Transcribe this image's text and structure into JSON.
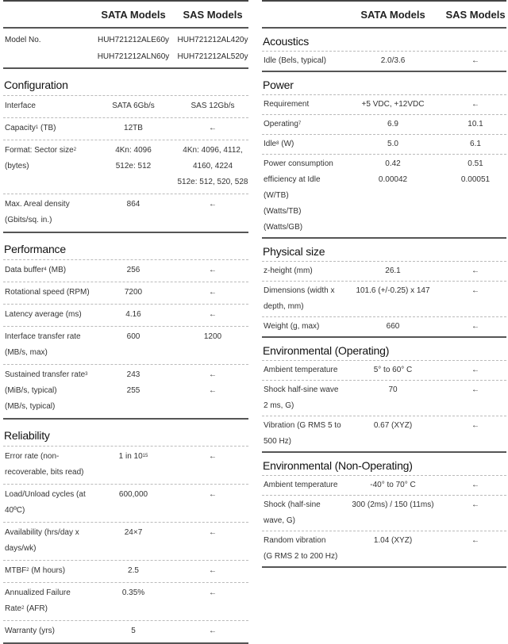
{
  "header": {
    "col_sata": "SATA Models",
    "col_sas": "SAS Models"
  },
  "left": {
    "model": {
      "label": "Model No.",
      "sata": [
        "HUH721212ALE60y",
        "HUH721212ALN60y"
      ],
      "sas": [
        "HUH721212AL420y",
        "HUH721212AL520y"
      ]
    },
    "sections": [
      {
        "title": "Configuration",
        "rows": [
          {
            "label": [
              "Interface"
            ],
            "sata": [
              "SATA 6Gb/s"
            ],
            "sas": [
              "SAS 12Gb/s"
            ]
          },
          {
            "label": [
              "Capacity"
            ],
            "sup": "1",
            "after": " (TB)",
            "sata": [
              "12TB"
            ],
            "sas": [
              "←"
            ]
          },
          {
            "label": [
              "Format: Sector size"
            ],
            "sup": "2",
            "after": " (bytes)",
            "sata": [
              "4Kn: 4096",
              "512e: 512"
            ],
            "sas": [
              "4Kn: 4096, 4112, 4160, 4224",
              "512e: 512, 520, 528"
            ]
          },
          {
            "label": [
              "Max. Areal density  (Gbits/sq. in.)"
            ],
            "sata": [
              "864"
            ],
            "sas": [
              "←"
            ]
          }
        ]
      },
      {
        "title": "Performance",
        "rows": [
          {
            "label": [
              "Data buffer"
            ],
            "sup": "4",
            "after": " (MB)",
            "sata": [
              "256"
            ],
            "sas": [
              "←"
            ]
          },
          {
            "label": [
              "Rotational speed (RPM)"
            ],
            "sata": [
              "7200"
            ],
            "sas": [
              "←"
            ]
          },
          {
            "label": [
              "Latency average (ms)"
            ],
            "sata": [
              "4.16"
            ],
            "sas": [
              "←"
            ]
          },
          {
            "label": [
              "Interface transfer rate (MB/s, max)"
            ],
            "sata": [
              "600"
            ],
            "sas": [
              "1200"
            ]
          },
          {
            "label": [
              "Sustained transfer rate",
              " (MiB/s, typical)",
              " (MB/s, typical)"
            ],
            "sup": "3",
            "supline": 0,
            "sata": [
              "",
              "243",
              "255"
            ],
            "sas": [
              "",
              "←",
              "←"
            ]
          }
        ]
      },
      {
        "title": "Reliability",
        "rows": [
          {
            "label": [
              "Error rate  (non-recoverable, bits read)"
            ],
            "sata": [
              "1 in 10"
            ],
            "valsup": "15",
            "sas": [
              "←"
            ]
          },
          {
            "label": [
              "Load/Unload cycles (at 40ºC)"
            ],
            "sata": [
              "600,000"
            ],
            "sas": [
              "←"
            ]
          },
          {
            "label": [
              "Availability (hrs/day x days/wk)"
            ],
            "sata": [
              "24×7"
            ],
            "sas": [
              "←"
            ]
          },
          {
            "label": [
              "MTBF"
            ],
            "sup": "2",
            "after": " (M hours)",
            "sata": [
              "2.5"
            ],
            "sas": [
              "←"
            ]
          },
          {
            "label": [
              "Annualized Failure Rate"
            ],
            "sup": "2",
            "after": " (AFR)",
            "sata": [
              "0.35%"
            ],
            "sas": [
              "←"
            ]
          },
          {
            "label": [
              "Warranty (yrs)"
            ],
            "sata": [
              "5"
            ],
            "sas": [
              "←"
            ]
          }
        ]
      }
    ]
  },
  "right": {
    "sections": [
      {
        "title": "Acoustics",
        "rows": [
          {
            "label": [
              "Idle (Bels, typical)"
            ],
            "sata": [
              "2.0/3.6"
            ],
            "sas": [
              "←"
            ]
          }
        ]
      },
      {
        "title": "Power",
        "rows": [
          {
            "label": [
              "Requirement"
            ],
            "sata": [
              "+5 VDC, +12VDC"
            ],
            "sas": [
              "←"
            ]
          },
          {
            "label": [
              "Operating"
            ],
            "sup": "7",
            "after": "",
            "sata": [
              "6.9"
            ],
            "sas": [
              "10.1"
            ]
          },
          {
            "label": [
              "Idle"
            ],
            "sup": "8",
            "after": " (W)",
            "sata": [
              "5.0"
            ],
            "sas": [
              "6.1"
            ]
          },
          {
            "label": [
              "Power consumption efficiency at Idle (W/TB)",
              " (Watts/TB)",
              " (Watts/GB)"
            ],
            "sata": [
              "",
              "0.42",
              "0.00042"
            ],
            "sas": [
              "",
              "0.51",
              "0.00051"
            ]
          }
        ]
      },
      {
        "title": "Physical size",
        "rows": [
          {
            "label": [
              "z-height (mm)"
            ],
            "sata": [
              "26.1"
            ],
            "sas": [
              "←"
            ]
          },
          {
            "label": [
              "Dimensions (width x depth, mm)"
            ],
            "sata": [
              "101.6 (+/-0.25) x 147"
            ],
            "sas": [
              "←"
            ]
          },
          {
            "label": [
              "Weight (g, max)"
            ],
            "sata": [
              "660"
            ],
            "sas": [
              "←"
            ]
          }
        ]
      },
      {
        "title": "Environmental (Operating)",
        "rows": [
          {
            "label": [
              "Ambient temperature"
            ],
            "sata": [
              "5° to 60° C"
            ],
            "sas": [
              "←"
            ]
          },
          {
            "label": [
              "Shock  half-sine wave 2 ms, G)"
            ],
            "sata": [
              "70"
            ],
            "sas": [
              "←"
            ]
          },
          {
            "label": [
              "Vibration (G RMS 5 to 500 Hz)"
            ],
            "sata": [
              "0.67 (XYZ)"
            ],
            "sas": [
              "←"
            ]
          }
        ]
      },
      {
        "title": "Environmental (Non-Operating)",
        "rows": [
          {
            "label": [
              "Ambient temperature"
            ],
            "sata": [
              "-40° to 70° C"
            ],
            "sas": [
              "←"
            ]
          },
          {
            "label": [
              "Shock (half-sine wave, G)"
            ],
            "sata": [
              "300 (2ms) / 150 (11ms)"
            ],
            "sas": [
              "←"
            ]
          },
          {
            "label": [
              "Random vibration",
              "(G RMS 2 to 200 Hz)"
            ],
            "sata": [
              "",
              "1.04 (XYZ)"
            ],
            "sas": [
              "",
              "←"
            ]
          }
        ]
      }
    ]
  }
}
